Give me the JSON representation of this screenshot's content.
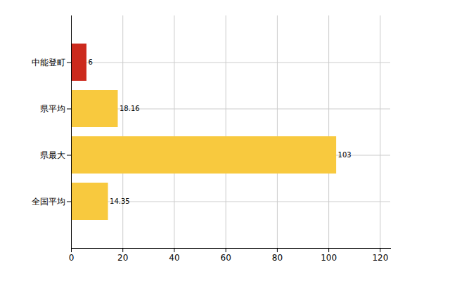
{
  "chart_data": {
    "type": "bar",
    "orientation": "horizontal",
    "categories": [
      "中能登町",
      "県平均",
      "県最大",
      "全国平均"
    ],
    "values": [
      6,
      18.16,
      103,
      14.35
    ],
    "colors": [
      "#cc2a1d",
      "#f8c93e",
      "#f8c93e",
      "#f8c93e"
    ],
    "xlim": [
      0,
      124
    ],
    "xticks": [
      0,
      20,
      40,
      60,
      80,
      100,
      120
    ],
    "grid": true,
    "data_labels": true
  }
}
